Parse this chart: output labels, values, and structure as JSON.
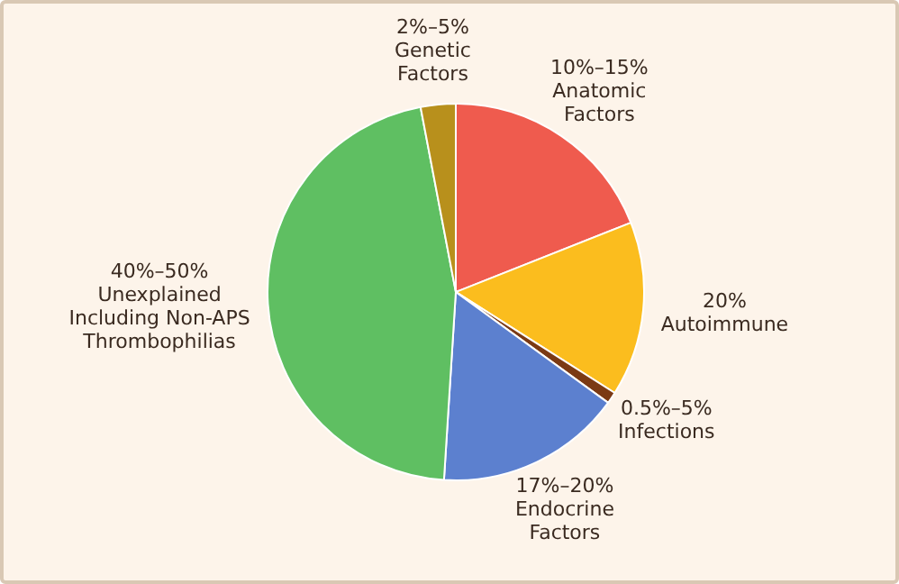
{
  "chart_data": {
    "type": "pie",
    "categories": [
      "10%–15%\nAnatomic\nFactors",
      "20%\nAutoimmune",
      "0.5%–5%\nInfections",
      "17%–20%\nEndocrine\nFactors",
      "40%–50%\nUnexplained\nIncluding Non-APS\nThrombophilias",
      "2%–5%\nGenetic\nFactors"
    ],
    "values": [
      19,
      15,
      1,
      16,
      46,
      3
    ],
    "colors": [
      "#ef5b4e",
      "#fbbd1e",
      "#7b3a14",
      "#5c80cf",
      "#5fbf62",
      "#b8901c"
    ],
    "legend": false
  }
}
